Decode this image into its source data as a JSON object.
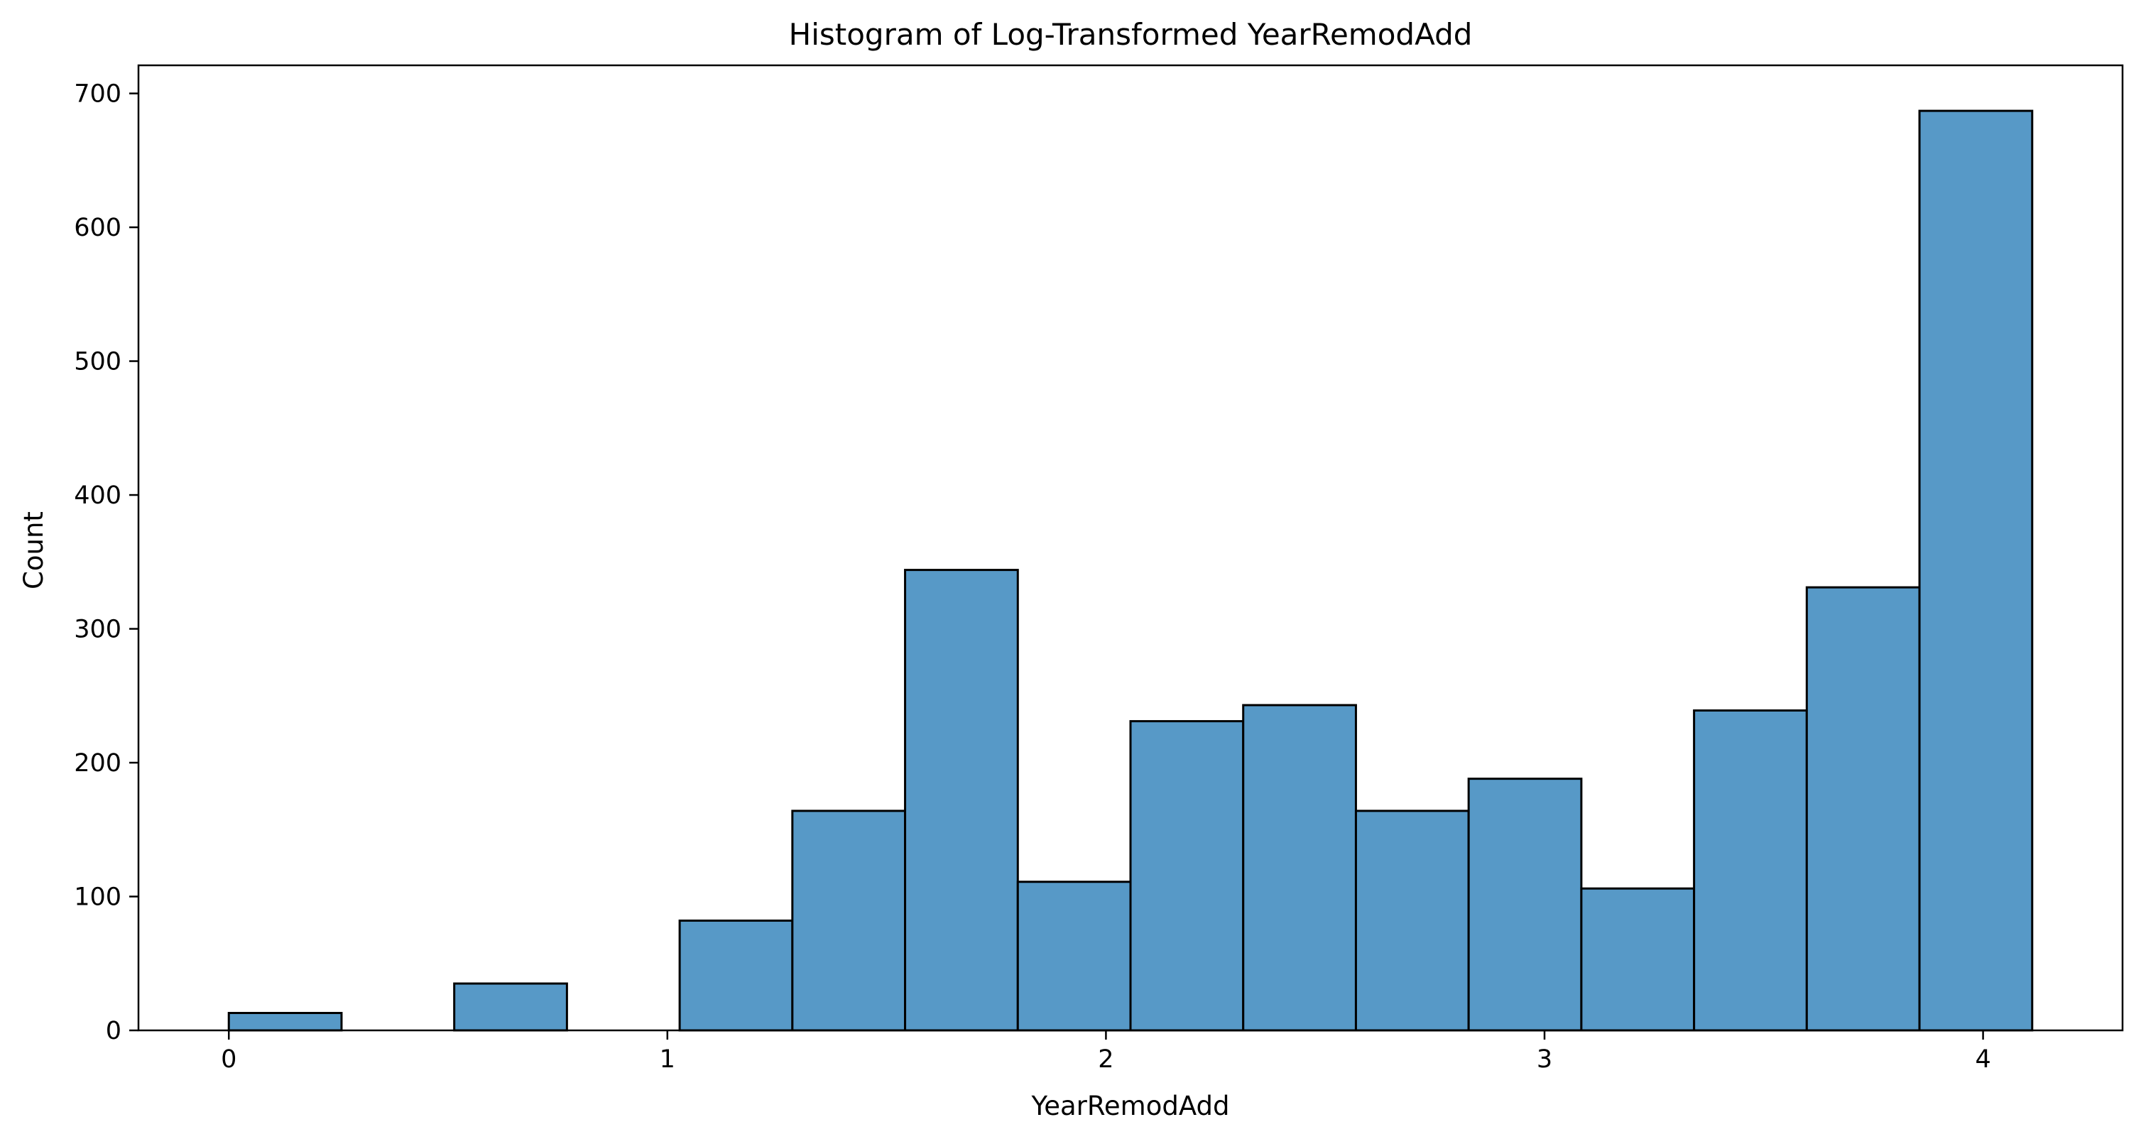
{
  "chart_data": {
    "type": "bar",
    "title": "Histogram of Log-Transformed YearRemodAdd",
    "xlabel": "YearRemodAdd",
    "ylabel": "Count",
    "bin_edges": [
      0.0,
      0.257,
      0.514,
      0.771,
      1.028,
      1.285,
      1.542,
      1.799,
      2.056,
      2.313,
      2.57,
      2.827,
      3.084,
      3.341,
      3.598,
      3.855,
      4.112
    ],
    "values": [
      13,
      0,
      35,
      0,
      82,
      164,
      344,
      111,
      231,
      243,
      164,
      188,
      106,
      239,
      331,
      687
    ],
    "xlim": [
      -0.206,
      4.318
    ],
    "ylim": [
      0,
      721
    ],
    "x_ticks": [
      0,
      1,
      2,
      3,
      4
    ],
    "x_tick_labels": [
      "0",
      "1",
      "2",
      "3",
      "4"
    ],
    "y_ticks": [
      0,
      100,
      200,
      300,
      400,
      500,
      600,
      700
    ],
    "y_tick_labels": [
      "0",
      "100",
      "200",
      "300",
      "400",
      "500",
      "600",
      "700"
    ],
    "grid": false,
    "colors": {
      "bar_fill": "#5799c7",
      "bar_edge": "#000000",
      "axes": "#000000"
    }
  }
}
